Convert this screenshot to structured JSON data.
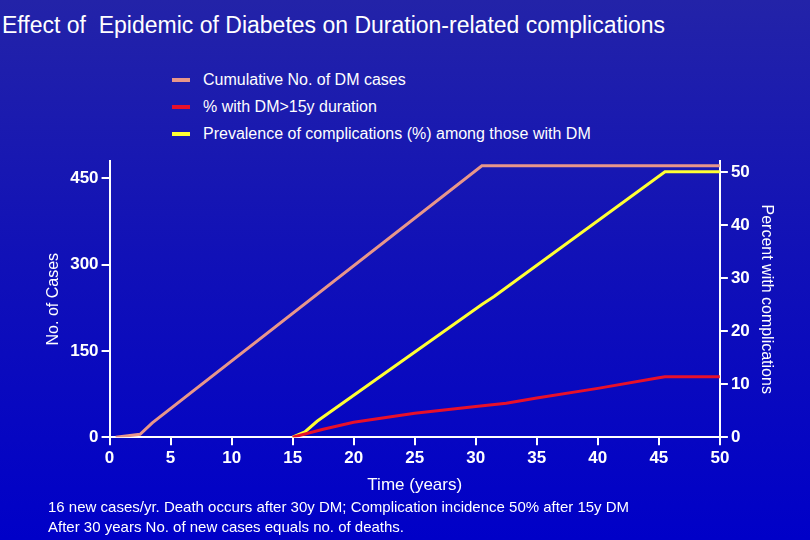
{
  "chart_data": {
    "type": "line",
    "title": "Effect of  Epidemic of Diabetes on Duration-related complications",
    "x_label": "Time (years)",
    "y_label": "No. of Cases",
    "y2_label": "Percent with complications",
    "annotations": [
      "16 new cases/yr. Death occurs after 30y DM; Complication incidence 50% after 15y DM",
      "After 30 years No. of new cases equals no. of deaths."
    ],
    "xlim": [
      0,
      50
    ],
    "xticks": [
      0,
      5,
      10,
      15,
      20,
      25,
      30,
      35,
      40,
      45,
      50
    ],
    "ylim": [
      0,
      480
    ],
    "yticks": [
      0,
      150,
      300,
      450
    ],
    "y2lim": [
      0,
      52
    ],
    "y2ticks": [
      0,
      10,
      20,
      30,
      40,
      50
    ],
    "grid": false,
    "legend": "top",
    "series": [
      {
        "name": "Cumulative No. of DM cases",
        "color": "#e8968a",
        "marker": "none",
        "x": [
          0.5,
          2.5,
          3.5,
          30.5,
          50
        ],
        "values": [
          0,
          5,
          25,
          472,
          472
        ]
      },
      {
        "name": "% with DM>15y duration",
        "color": "#e8102a",
        "axis": "y2",
        "marker": "none",
        "x": [
          15,
          17.5,
          20,
          25,
          30,
          32.5,
          35,
          40,
          45,
          45.5,
          50
        ],
        "values": [
          0,
          1.5,
          2.8,
          4.5,
          5.8,
          6.4,
          7.4,
          9.2,
          11.2,
          11.4,
          11.4
        ]
      },
      {
        "name": "Prevalence of complications (%) among those with DM",
        "color": "#ffff33",
        "axis": "y2",
        "marker": "none",
        "x": [
          15,
          16,
          17,
          30.5,
          31.5,
          45.5,
          50
        ],
        "values": [
          0,
          1,
          3,
          25,
          26.5,
          50,
          50
        ]
      }
    ]
  }
}
